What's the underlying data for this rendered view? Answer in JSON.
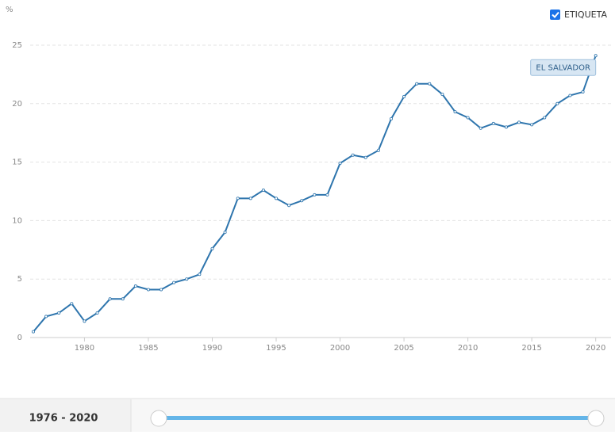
{
  "chart_data": {
    "type": "line",
    "unit_label": "%",
    "toggle_label": "ETIQUETA",
    "range_label": "1976 - 2020",
    "x": [
      1976,
      1977,
      1978,
      1979,
      1980,
      1981,
      1982,
      1983,
      1984,
      1985,
      1986,
      1987,
      1988,
      1989,
      1990,
      1991,
      1992,
      1993,
      1994,
      1995,
      1996,
      1997,
      1998,
      1999,
      2000,
      2001,
      2002,
      2003,
      2004,
      2005,
      2006,
      2007,
      2008,
      2009,
      2010,
      2011,
      2012,
      2013,
      2014,
      2015,
      2016,
      2017,
      2018,
      2019,
      2020
    ],
    "series": [
      {
        "name": "EL SALVADOR",
        "color": "#2e75ad",
        "values": [
          0.5,
          1.8,
          2.1,
          2.9,
          1.4,
          2.1,
          3.3,
          3.3,
          4.4,
          4.1,
          4.1,
          4.7,
          5.0,
          5.4,
          7.6,
          9.0,
          11.9,
          11.9,
          12.6,
          11.9,
          11.3,
          11.7,
          12.2,
          12.2,
          14.9,
          15.6,
          15.4,
          16.0,
          18.7,
          20.6,
          21.7,
          21.7,
          20.8,
          19.3,
          18.8,
          17.9,
          18.3,
          18.0,
          18.4,
          18.2,
          18.8,
          20.0,
          20.7,
          21.0,
          24.1
        ]
      }
    ],
    "xlim": [
      1976,
      2021.2
    ],
    "xticks": [
      1980,
      1985,
      1990,
      1995,
      2000,
      2005,
      2010,
      2015,
      2020
    ],
    "ylim": [
      0,
      25
    ],
    "yticks": [
      0,
      5,
      10,
      15,
      20,
      25
    ],
    "grid": true
  }
}
